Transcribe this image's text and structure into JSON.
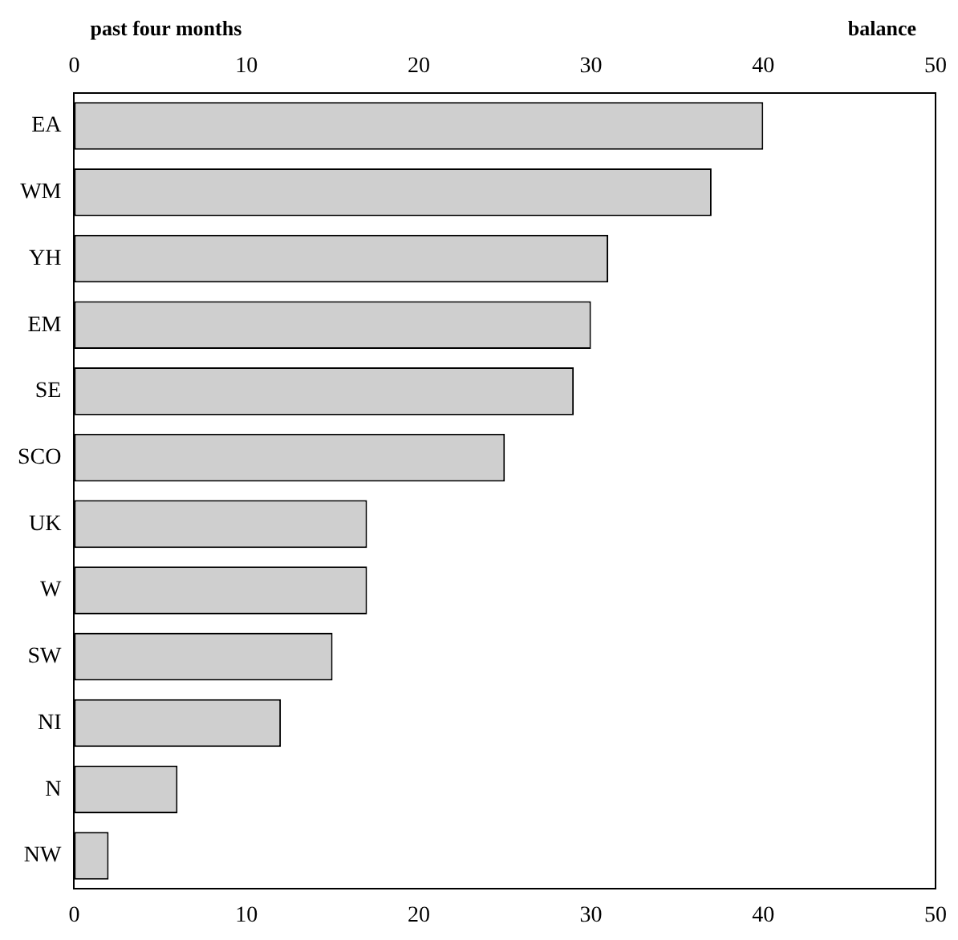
{
  "chart_data": {
    "type": "bar",
    "orientation": "horizontal",
    "title": "past four months",
    "x2label": "balance",
    "categories": [
      "EA",
      "WM",
      "YH",
      "EM",
      "SE",
      "SCO",
      "UK",
      "W",
      "SW",
      "NI",
      "N",
      "NW"
    ],
    "values": [
      40,
      37,
      31,
      30,
      29,
      25,
      17,
      17,
      15,
      12,
      6,
      2
    ],
    "color": "#cfcfcf",
    "xlim": [
      0,
      50
    ],
    "xticks": [
      0,
      10,
      20,
      30,
      40,
      50
    ],
    "x2lim": [
      0,
      50
    ],
    "x2ticks": [
      0,
      10,
      20,
      30,
      40,
      50
    ],
    "grid": false,
    "legend": false
  }
}
